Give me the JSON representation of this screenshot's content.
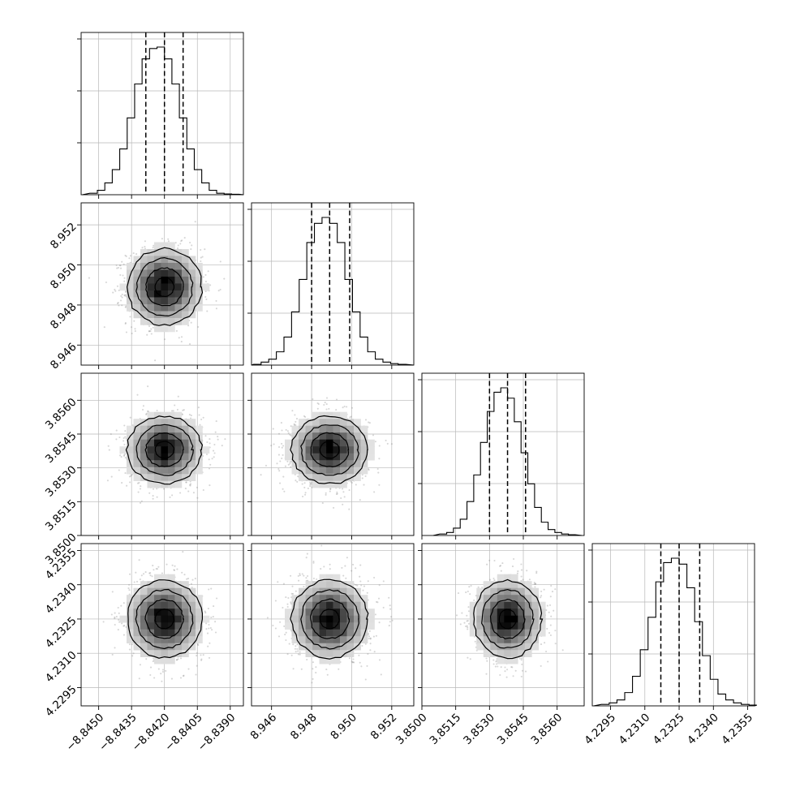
{
  "chart_data": {
    "type": "corner",
    "grid": true,
    "parameters": [
      {
        "index": 0,
        "center": -8.842,
        "sigma": 0.00085,
        "range": [
          -8.8458,
          -8.8384
        ],
        "ticks": [
          -8.845,
          -8.8435,
          -8.842,
          -8.8405,
          -8.839
        ],
        "tick_labels": [
          "−8.8450",
          "−8.8435",
          "−8.8420",
          "−8.8405",
          "−8.8390"
        ],
        "quantiles": [
          -8.84285,
          -8.842,
          -8.84115
        ],
        "histogram": [
          1,
          3,
          8,
          17,
          31,
          52,
          75,
          92,
          99,
          100,
          92,
          75,
          52,
          31,
          17,
          8,
          3,
          1,
          0.5,
          0.3
        ]
      },
      {
        "index": 1,
        "center": 8.9489,
        "sigma": 0.00095,
        "range": [
          8.945,
          8.9531
        ],
        "ticks": [
          8.946,
          8.948,
          8.95,
          8.952
        ],
        "tick_labels": [
          "8.946",
          "8.948",
          "8.950",
          "8.952"
        ],
        "quantiles": [
          8.948,
          8.9489,
          8.9499
        ],
        "histogram": [
          0.5,
          2,
          4,
          9,
          19,
          36,
          58,
          83,
          96,
          100,
          96,
          83,
          58,
          36,
          19,
          9,
          4,
          2,
          1,
          0.5
        ]
      },
      {
        "index": 2,
        "center": 3.8538,
        "sigma": 0.00075,
        "range": [
          3.85,
          3.8572
        ],
        "ticks": [
          3.85,
          3.8515,
          3.853,
          3.8545,
          3.856
        ],
        "tick_labels": [
          "3.8500",
          "3.8515",
          "3.8530",
          "3.8545",
          "3.8560"
        ],
        "quantiles": [
          3.853,
          3.8538,
          3.8546
        ],
        "histogram": [
          1,
          2,
          5,
          11,
          23,
          41,
          63,
          84,
          97,
          100,
          93,
          77,
          56,
          35,
          19,
          9,
          4,
          2,
          1,
          0.5
        ]
      },
      {
        "index": 3,
        "center": 4.2325,
        "sigma": 0.00085,
        "range": [
          4.2287,
          4.2358
        ],
        "ticks": [
          4.2295,
          4.231,
          4.2325,
          4.234,
          4.2355
        ],
        "tick_labels": [
          "4.2295",
          "4.2310",
          "4.2325",
          "4.2340",
          "4.2355"
        ],
        "quantiles": [
          4.2317,
          4.2325,
          4.2334
        ],
        "histogram": [
          1,
          2,
          4,
          9,
          20,
          38,
          60,
          84,
          97,
          100,
          96,
          80,
          57,
          34,
          18,
          8,
          4,
          2,
          1,
          0.5
        ]
      }
    ],
    "pairs": [
      {
        "row": 1,
        "col": 0,
        "correlation": 0
      },
      {
        "row": 2,
        "col": 0,
        "correlation": 0
      },
      {
        "row": 2,
        "col": 1,
        "correlation": 0
      },
      {
        "row": 3,
        "col": 0,
        "correlation": 0
      },
      {
        "row": 3,
        "col": 1,
        "correlation": 0
      },
      {
        "row": 3,
        "col": 2,
        "correlation": 0
      }
    ],
    "contour_levels_sigma": [
      0.5,
      1.0,
      1.5,
      2.0
    ],
    "colors": {
      "points": "#8a8a8a",
      "lines": "#000000",
      "grid": "#b8b8b8"
    }
  }
}
